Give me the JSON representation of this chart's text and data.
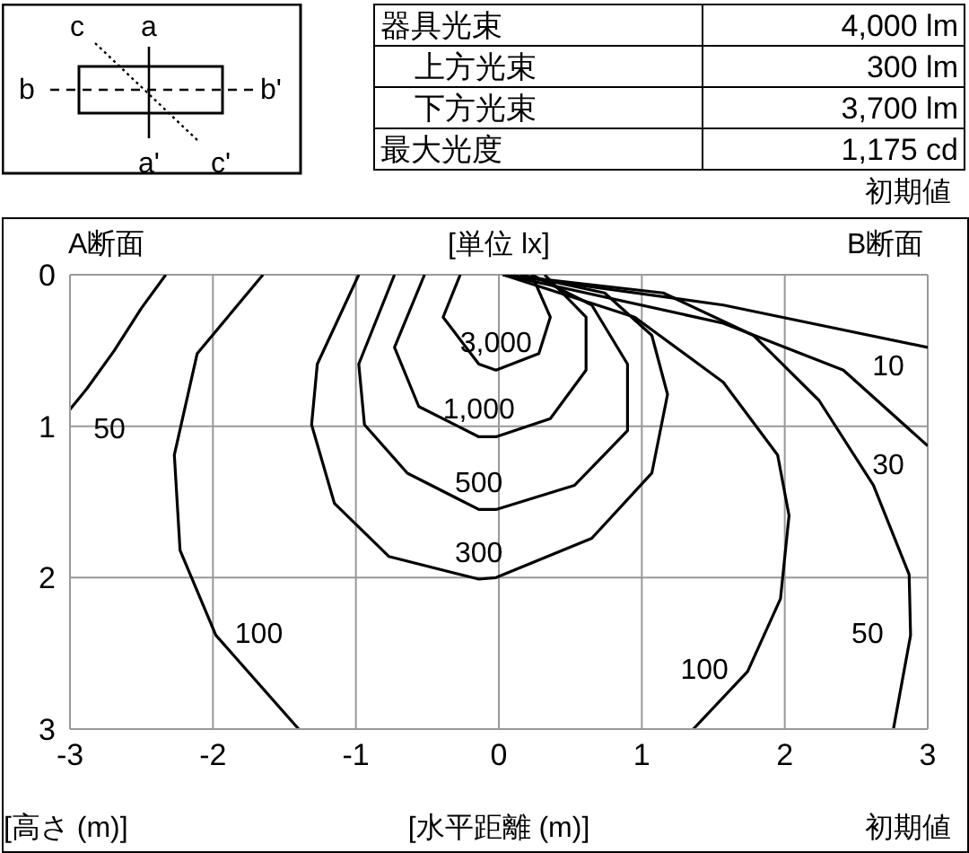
{
  "chart_data": {
    "type": "line",
    "xlabel": "[水平距離 (m)]",
    "ylabel": "[高さ (m)]",
    "xlim": [
      -3,
      3
    ],
    "xticks": [
      -3,
      -2,
      -1,
      0,
      1,
      2,
      3
    ],
    "ylim": [
      3,
      0
    ],
    "yticks": [
      0,
      1,
      2,
      3
    ],
    "grid": true,
    "marker": "none",
    "line_style": "solid",
    "series": [
      {
        "name": "3,000",
        "color": "#000000",
        "x": [
          -0.27,
          -0.39,
          -0.14,
          -0.02,
          0.28,
          0.36,
          0.23
        ],
        "values": [
          0,
          0.28,
          0.59,
          0.63,
          0.52,
          0.28,
          0
        ]
      },
      {
        "name": "1,000",
        "color": "#000000",
        "x": [
          -0.52,
          -0.73,
          -0.56,
          -0.14,
          -0.02,
          0.36,
          0.61,
          0.61,
          0.32
        ],
        "values": [
          0,
          0.48,
          0.87,
          1.07,
          1.07,
          0.95,
          0.63,
          0.28,
          0
        ]
      },
      {
        "name": "500",
        "color": "#000000",
        "x": [
          -0.73,
          -0.98,
          -0.94,
          -0.64,
          -0.14,
          -0.02,
          0.53,
          0.9,
          0.9,
          0.65,
          0.23
        ],
        "values": [
          0,
          0.59,
          0.99,
          1.31,
          1.55,
          1.55,
          1.39,
          1.03,
          0.59,
          0.2,
          0
        ]
      },
      {
        "name": "300",
        "color": "#000000",
        "x": [
          -0.98,
          -1.27,
          -1.31,
          -1.15,
          -0.77,
          -0.14,
          -0.02,
          0.65,
          1.07,
          1.18,
          1.07,
          0.74,
          0.15
        ],
        "values": [
          0,
          0.59,
          0.99,
          1.51,
          1.86,
          2.01,
          2.0,
          1.74,
          1.31,
          0.79,
          0.4,
          0.12,
          0
        ]
      },
      {
        "name": "100",
        "color": "#000000",
        "x": [
          -1.65,
          -2.11,
          -2.27,
          -2.23,
          -1.98,
          -1.4
        ],
        "values": [
          0,
          0.52,
          1.19,
          1.82,
          2.38,
          3
        ]
      },
      {
        "name": "100",
        "color": "#000000",
        "x": [
          0.03,
          0.95,
          1.57,
          1.95,
          2.03,
          1.97,
          1.74,
          1.36
        ],
        "values": [
          0,
          0.28,
          0.71,
          1.19,
          1.59,
          2.14,
          2.62,
          3
        ]
      },
      {
        "name": "50",
        "color": "#000000",
        "x": [
          -2.33,
          -2.5,
          -2.69,
          -2.88,
          -3
        ],
        "values": [
          0,
          0.22,
          0.5,
          0.75,
          0.89
        ]
      },
      {
        "name": "50",
        "color": "#000000",
        "x": [
          0.03,
          1.15,
          1.78,
          2.24,
          2.62,
          2.87,
          2.88,
          2.76
        ],
        "values": [
          0,
          0.12,
          0.4,
          0.83,
          1.39,
          1.98,
          2.38,
          3
        ]
      },
      {
        "name": "30",
        "color": "#000000",
        "x": [
          0.03,
          1.57,
          2.41,
          3
        ],
        "values": [
          0,
          0.32,
          0.63,
          1.13
        ]
      },
      {
        "name": "10",
        "color": "#000000",
        "x": [
          0.03,
          1.57,
          3
        ],
        "values": [
          0,
          0.2,
          0.48
        ]
      }
    ],
    "annotations": [
      "A断面",
      "[単位 lx]",
      "B断面",
      "初期値",
      "器具光束",
      "4,000 lm",
      "上方光束",
      "300 lm",
      "下方光束",
      "3,700 lm",
      "最大光度",
      "1,175 cd",
      "初期値",
      "a",
      "a'",
      "b",
      "b'",
      "c",
      "c'"
    ]
  }
}
